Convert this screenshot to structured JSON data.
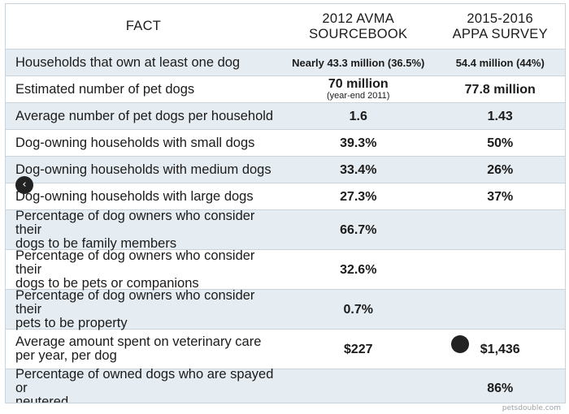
{
  "header": {
    "fact": "FACT",
    "col_a_line1": "2012 AVMA",
    "col_a_line2": "SOURCEBOOK",
    "col_b_line1": "2015-2016",
    "col_b_line2": "APPA SURVEY"
  },
  "rows": [
    {
      "fact_line1": "Households that own at least one dog",
      "fact_line2": "",
      "a": "Nearly 43.3 million (36.5%)",
      "a_sub": "",
      "b": "54.4 million  (44%)"
    },
    {
      "fact_line1": "Estimated number of pet dogs",
      "fact_line2": "",
      "a": "70 million",
      "a_sub": "(year-end 2011)",
      "b": "77.8 million"
    },
    {
      "fact_line1": "Average number of pet dogs per household",
      "fact_line2": "",
      "a": "1.6",
      "a_sub": "",
      "b": "1.43"
    },
    {
      "fact_line1": "Dog-owning households with small dogs",
      "fact_line2": "",
      "a": "39.3%",
      "a_sub": "",
      "b": "50%"
    },
    {
      "fact_line1": "Dog-owning households with medium dogs",
      "fact_line2": "",
      "a": "33.4%",
      "a_sub": "",
      "b": "26%"
    },
    {
      "fact_line1": "Dog-owning households with large dogs",
      "fact_line2": "",
      "a": "27.3%",
      "a_sub": "",
      "b": "37%"
    },
    {
      "fact_line1": "Percentage of dog owners who consider their",
      "fact_line2": "dogs to be family members",
      "a": "66.7%",
      "a_sub": "",
      "b": ""
    },
    {
      "fact_line1": "Percentage of dog owners who consider their",
      "fact_line2": "dogs to be pets or companions",
      "a": "32.6%",
      "a_sub": "",
      "b": ""
    },
    {
      "fact_line1": "Percentage of dog owners who consider their",
      "fact_line2": "pets to be property",
      "a": "0.7%",
      "a_sub": "",
      "b": ""
    },
    {
      "fact_line1": "Average amount spent on veterinary care",
      "fact_line2": "per year, per dog",
      "a": "$227",
      "a_sub": "",
      "b": "$1,436"
    },
    {
      "fact_line1": "Percentage of owned dogs who are spayed or",
      "fact_line2": "neutered",
      "a": "",
      "a_sub": "",
      "b": "86%"
    }
  ],
  "nav": {
    "prev_icon": "‹",
    "next_icon": ""
  },
  "watermark": "petsdouble.com",
  "colors": {
    "shade": "#e6edf2",
    "border": "#c9d3db"
  }
}
